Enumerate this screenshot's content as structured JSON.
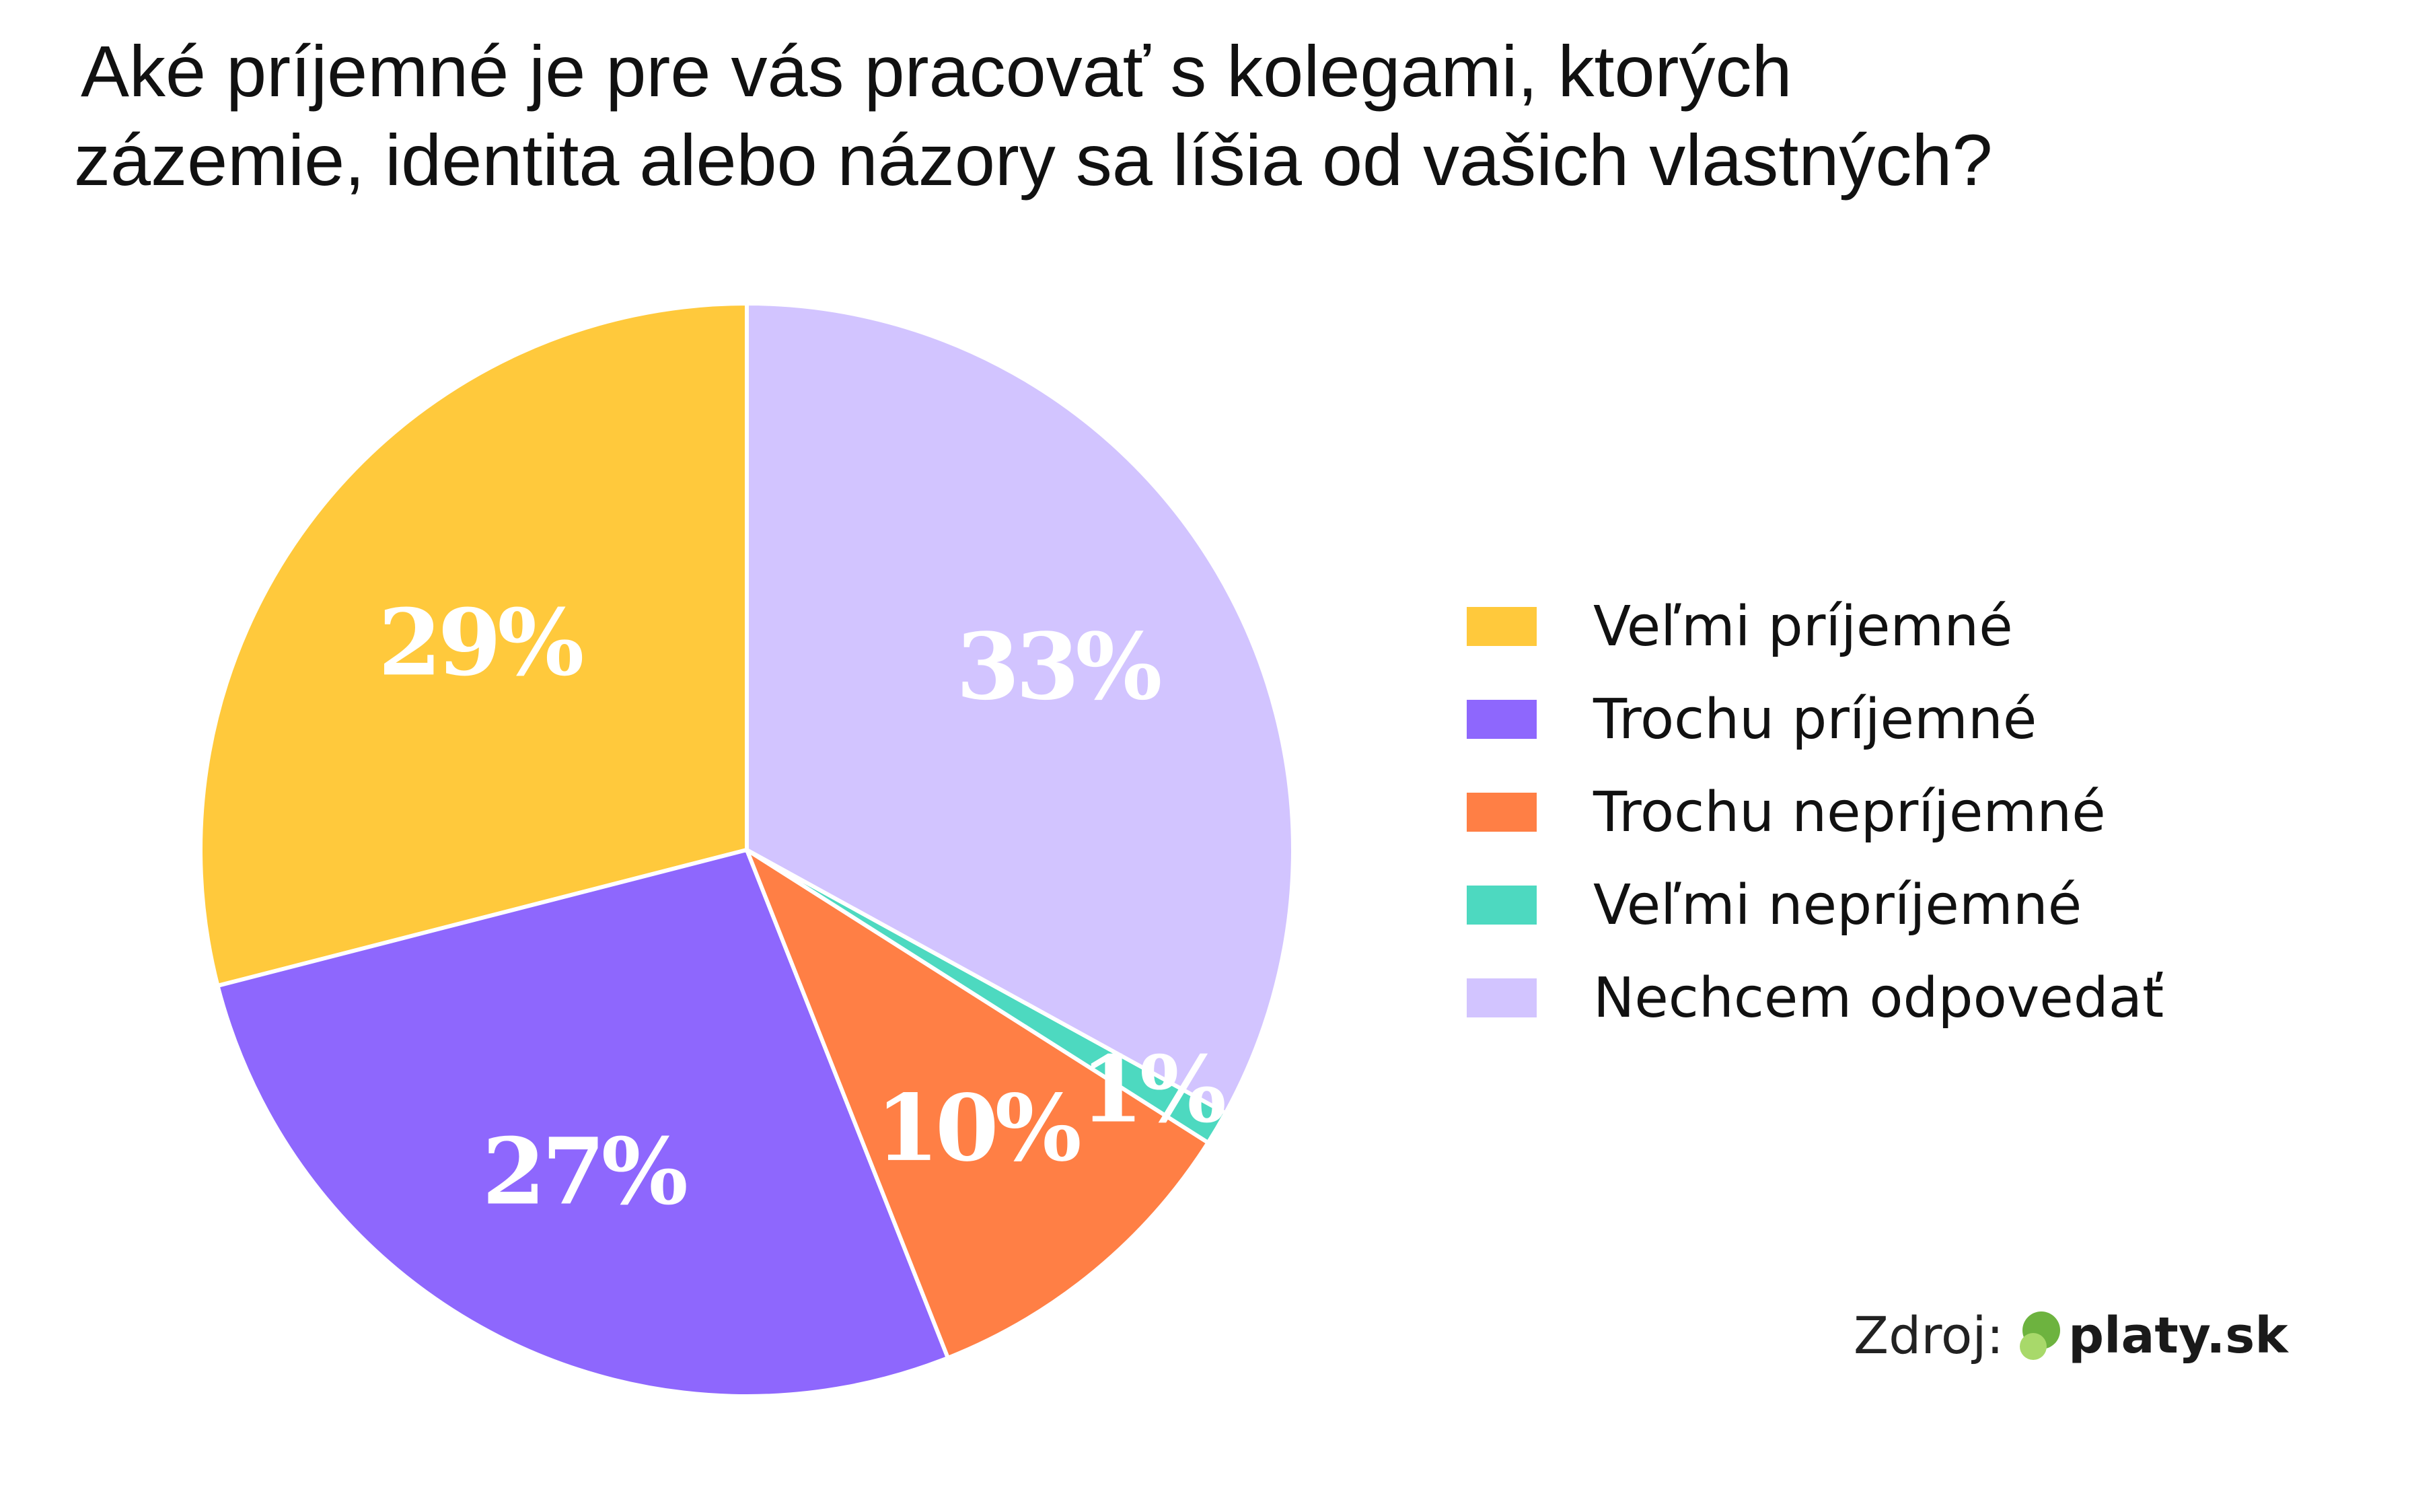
{
  "chart_data": {
    "type": "pie",
    "title_lines": [
      "Aké príjemné je pre vás pracovať s kolegami, ktorých",
      "zázemie, identita alebo názory sa líšia od vašich vlastných?"
    ],
    "start_angle_deg": 0,
    "direction": "counterclockwise",
    "legend_position": "right",
    "categories": [
      "Veľmi príjemné",
      "Trochu príjemné",
      "Trochu nepríjemné",
      "Veľmi nepríjemné",
      "Nechcem odpovedať"
    ],
    "values": [
      29,
      27,
      10,
      1,
      33
    ],
    "labels": [
      "29%",
      "27%",
      "10%",
      "1%",
      "33%"
    ],
    "colors": [
      "#FFC93C",
      "#8E67FD",
      "#FF7F45",
      "#4DD9C0",
      "#D2C4FF"
    ]
  },
  "source": {
    "label": "Zdroj:",
    "logo_icon": "green-circles-logo-icon",
    "logo_text": "platy.sk",
    "logo_colors": [
      "#6DB33F",
      "#A8D96A"
    ]
  }
}
